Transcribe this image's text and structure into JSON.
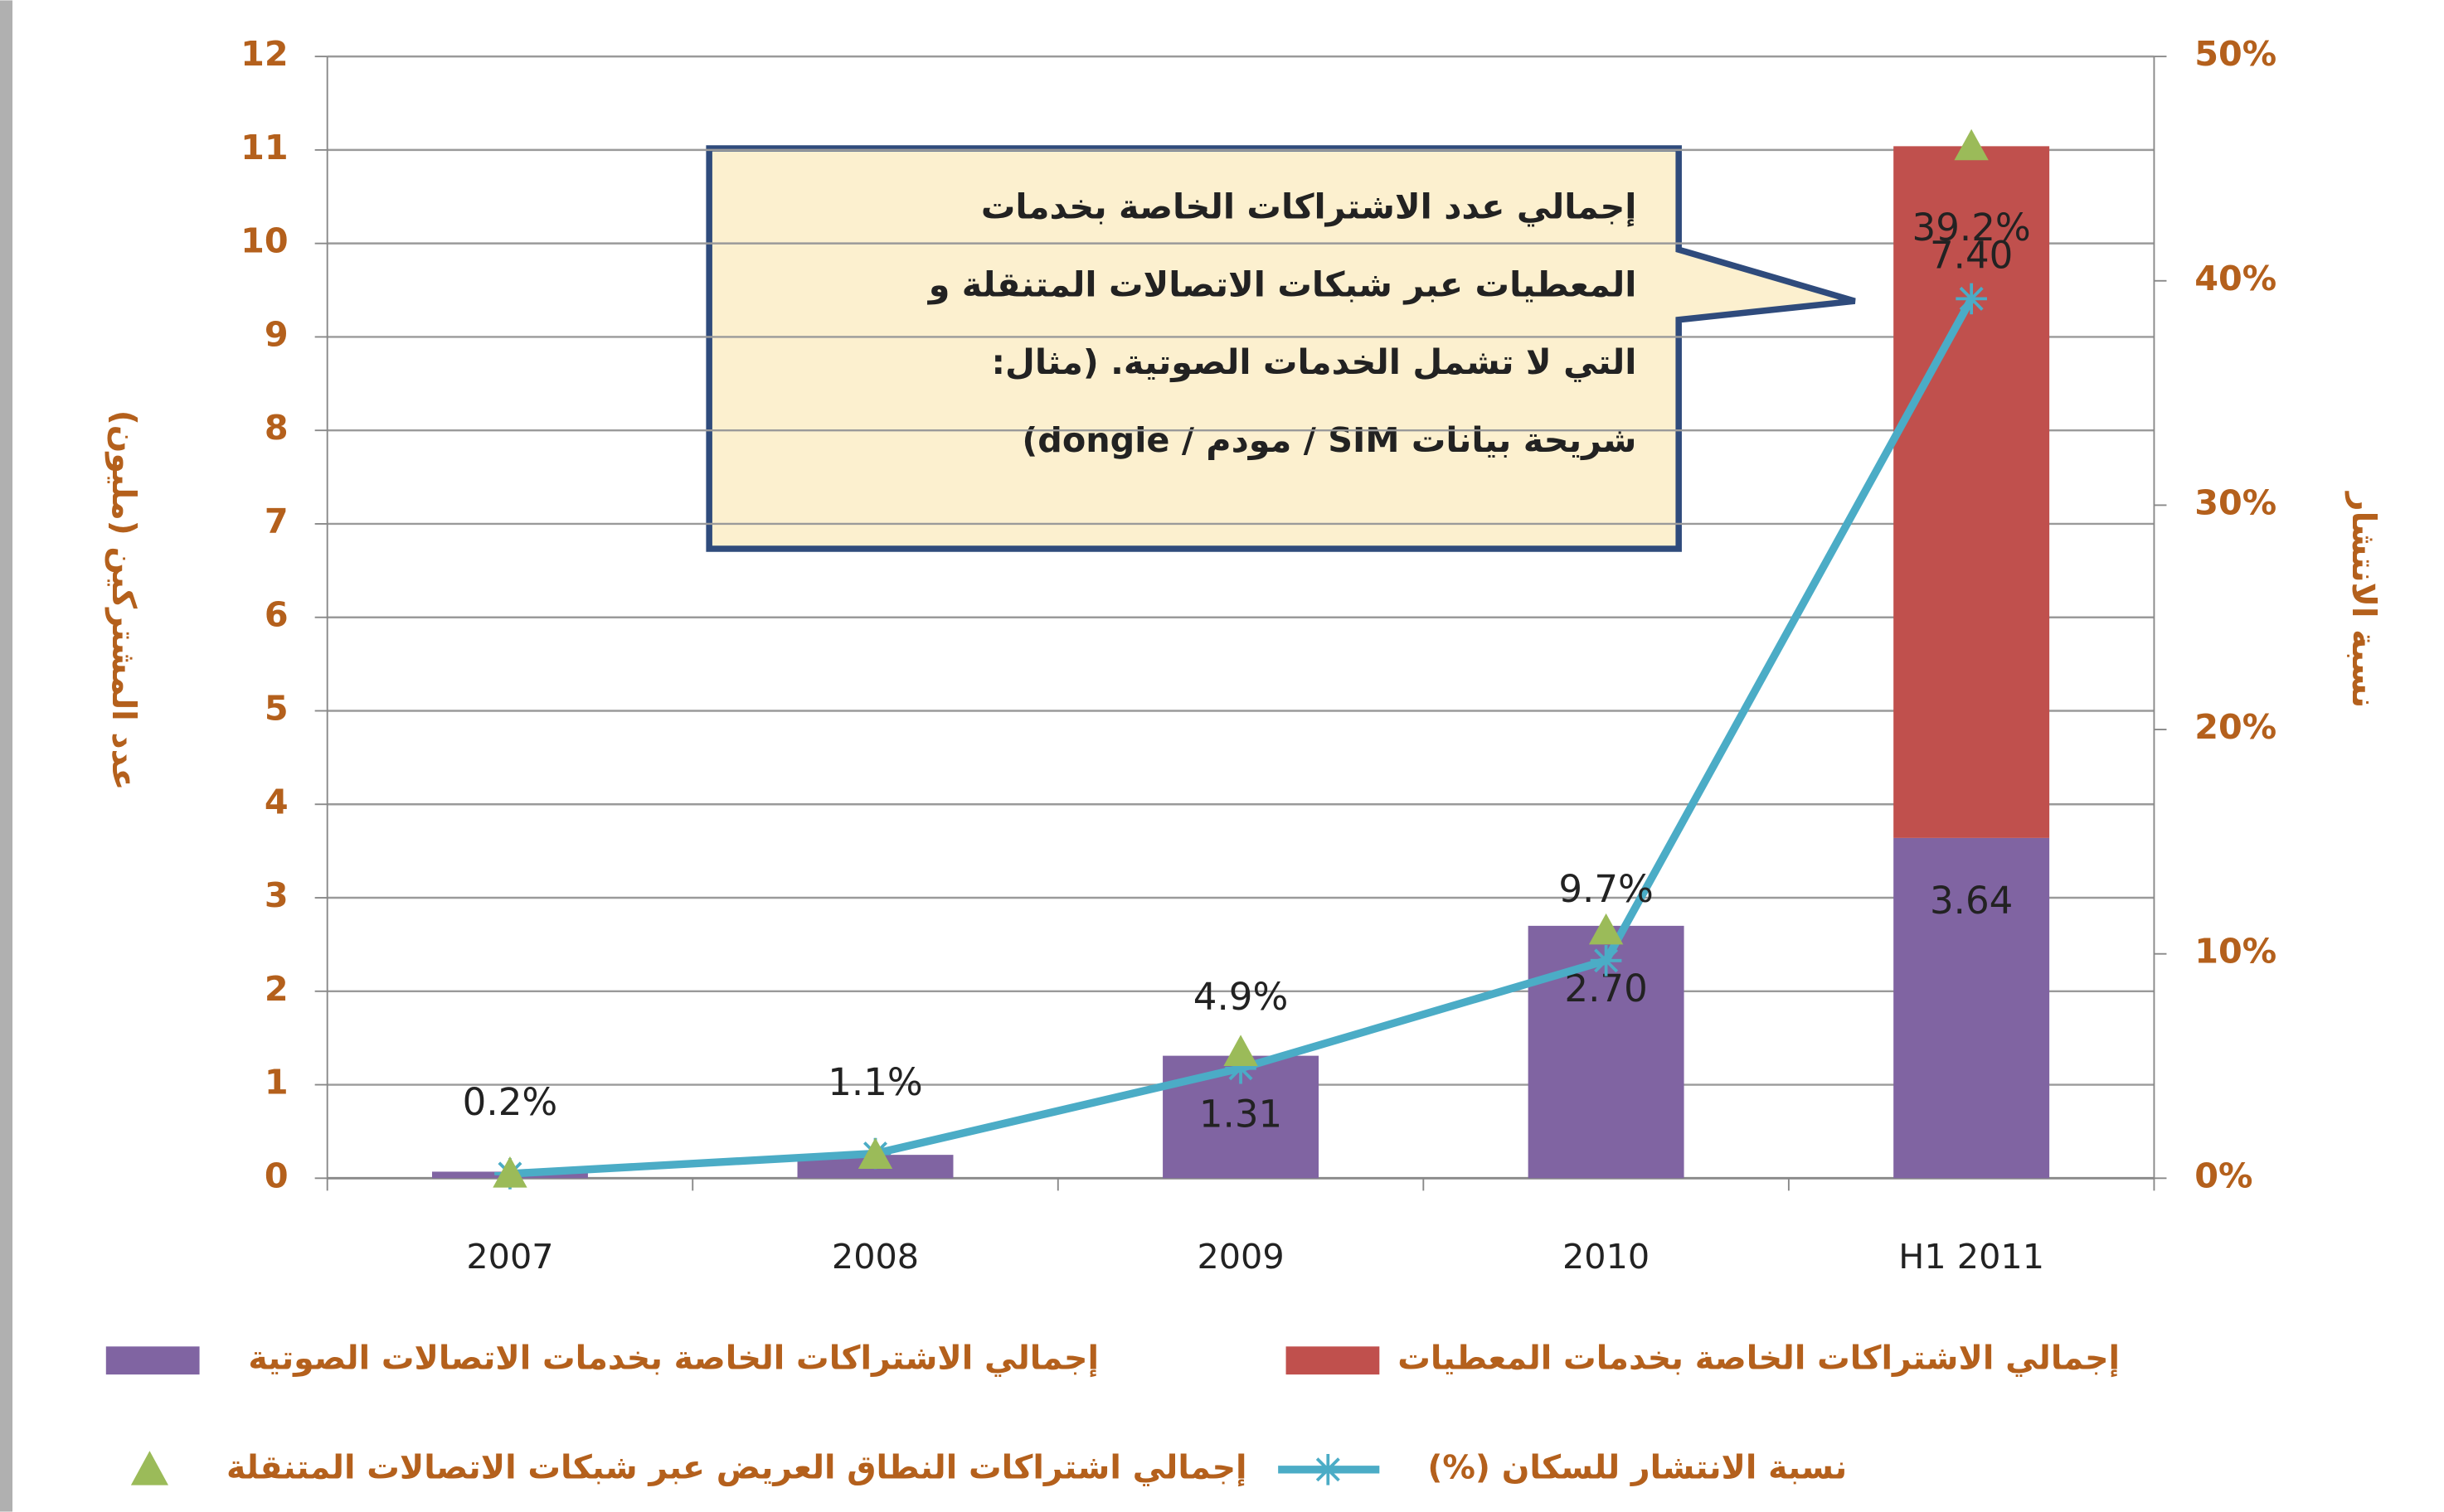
{
  "chart_data": {
    "type": "bar",
    "stacked": true,
    "categories": [
      "2007",
      "2008",
      "2009",
      "2010",
      "H1 2011"
    ],
    "ylabel": "عدد المشتركين (مليون)",
    "y2label": "نسبة الانتشار",
    "ylim": [
      0,
      12
    ],
    "yticks": [
      0,
      1,
      2,
      3,
      4,
      5,
      6,
      7,
      8,
      9,
      10,
      11,
      12
    ],
    "y2lim": [
      0,
      50
    ],
    "y2ticks": [
      {
        "value": 0,
        "label": "0%"
      },
      {
        "value": 10,
        "label": "10%"
      },
      {
        "value": 20,
        "label": "20%"
      },
      {
        "value": 30,
        "label": "30%"
      },
      {
        "value": 40,
        "label": "40%"
      },
      {
        "value": 50,
        "label": "50%"
      }
    ],
    "grid": true,
    "series": [
      {
        "name": "إجمالي الاشتراكات الخاصة بخدمات الاتصالات الصوتية",
        "type": "bar",
        "color": "#8064a2",
        "values": [
          0.07,
          0.25,
          1.31,
          2.7,
          3.64
        ],
        "value_labels": [
          null,
          null,
          "1.31",
          "2.70",
          "3.64"
        ]
      },
      {
        "name": "إجمالي الاشتراكات الخاصة بخدمات المعطيات",
        "type": "bar",
        "color": "#c0504d",
        "values": [
          0,
          0,
          0,
          0,
          7.4
        ],
        "value_labels": [
          null,
          null,
          null,
          null,
          "7.40"
        ]
      },
      {
        "name": "نسبة الانتشار للسكان (%)",
        "type": "line",
        "axis": "y2",
        "color": "#4bacc6",
        "values": [
          0.2,
          1.1,
          4.9,
          9.7,
          39.2
        ],
        "value_labels": [
          "0.2%",
          "1.1%",
          "4.9%",
          "9.7%",
          "39.2%"
        ]
      },
      {
        "name": "إجمالي اشتراكات النطاق العريض عبر شبكات الاتصالات المتنقلة",
        "type": "marker",
        "color": "#9bbb59",
        "values": [
          0.05,
          0.25,
          1.35,
          2.65,
          11.04
        ]
      }
    ],
    "annotation": [
      "إجمالي عدد الاشتراكات الخاصة بخدمات",
      "المعطيات عبر شبكات الاتصالات المتنقلة و",
      "التي لا تشمل الخدمات الصوتية. (مثال:",
      "شريحة بيانات SIM / مودم / dongle)"
    ]
  }
}
